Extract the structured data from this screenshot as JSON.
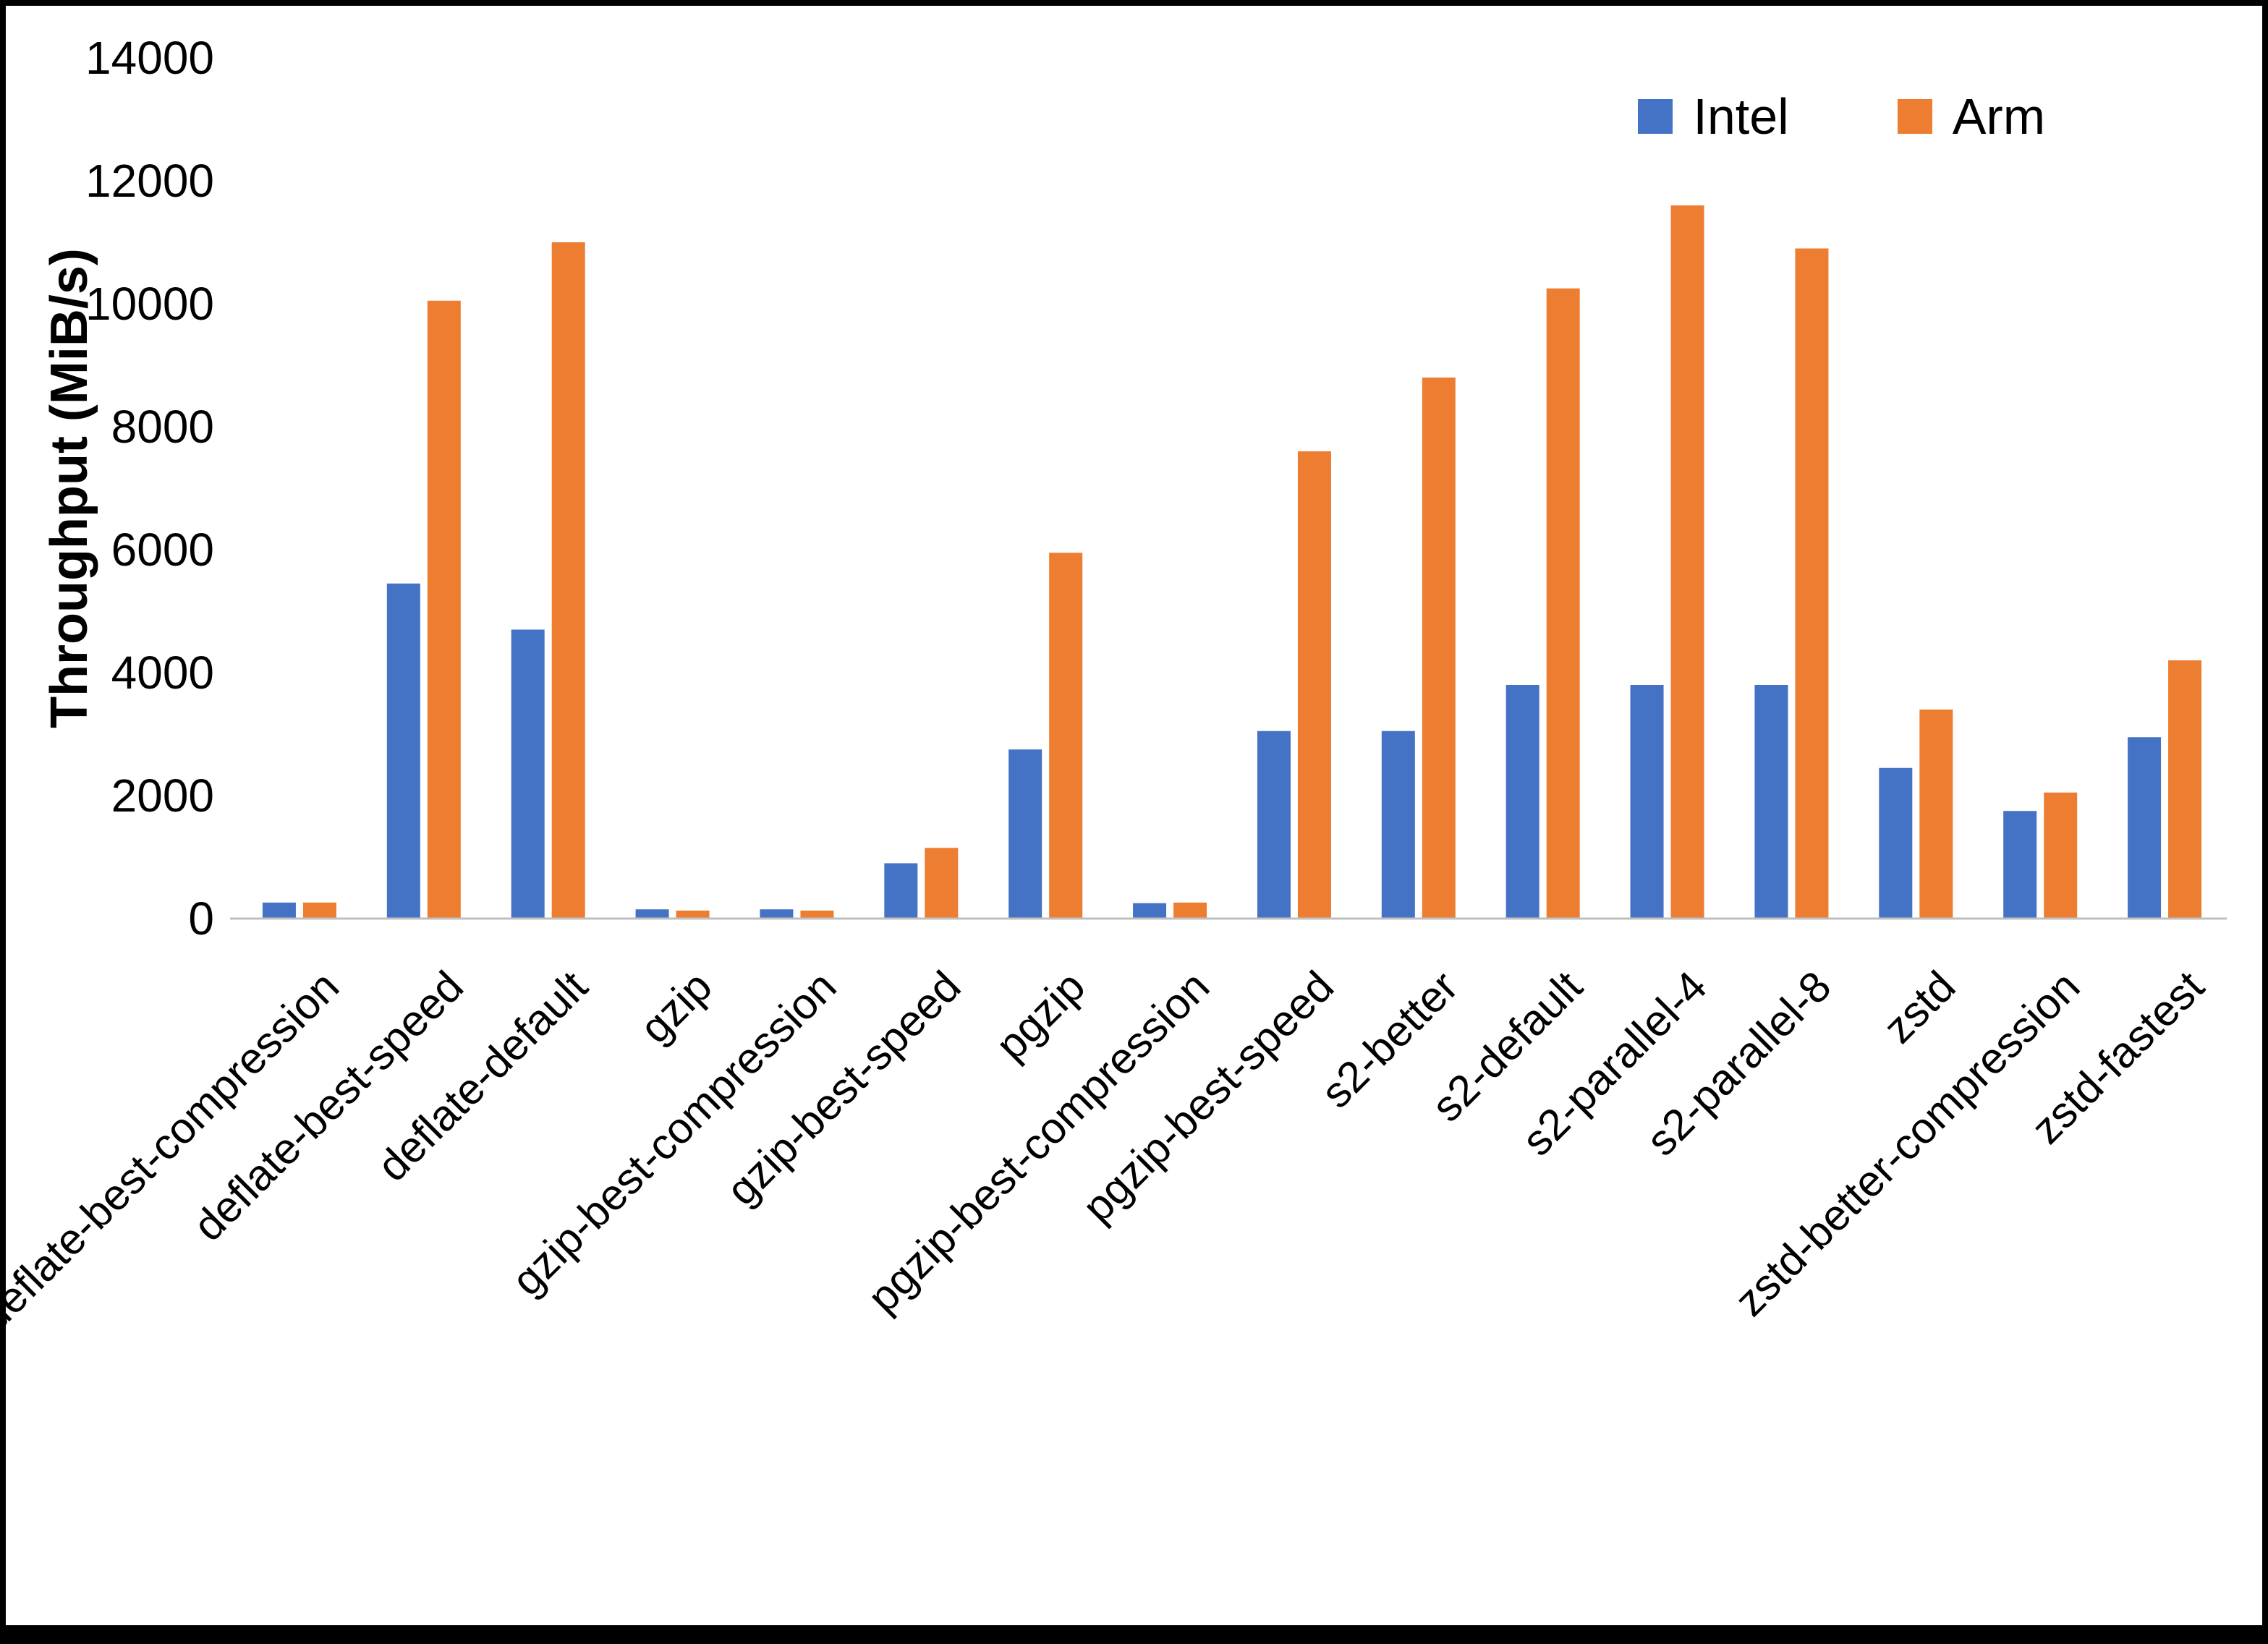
{
  "frame": {
    "background": "#FFFFFF",
    "border_color": "#000000"
  },
  "chart_data": {
    "type": "bar",
    "title": "",
    "xlabel": "",
    "ylabel": "Throughput (MiB/s)",
    "ylim": [
      0,
      14000
    ],
    "ytick_step": 2000,
    "grid": false,
    "legend_position": "top-right",
    "axis_line_color": "#BFBFBF",
    "categories": [
      "deflate-best-compression",
      "deflate-best-speed",
      "deflate-default",
      "gzip",
      "gzip-best-compression",
      "gzip-best-speed",
      "pgzip",
      "pgzip-best-compression",
      "pgzip-best-speed",
      "s2-better",
      "s2-default",
      "s2-parallel-4",
      "s2-parallel-8",
      "zstd",
      "zstd-better-compression",
      "zstd-fastest"
    ],
    "series": [
      {
        "name": "Intel",
        "color": "#4472C4",
        "values": [
          260,
          5450,
          4700,
          150,
          150,
          900,
          2750,
          250,
          3050,
          3050,
          3800,
          3800,
          3800,
          2450,
          1750,
          2950
        ]
      },
      {
        "name": "Arm",
        "color": "#ED7D31",
        "values": [
          260,
          10050,
          11000,
          130,
          130,
          1150,
          5950,
          260,
          7600,
          8800,
          10250,
          11600,
          10900,
          3400,
          2050,
          4200
        ]
      }
    ]
  }
}
